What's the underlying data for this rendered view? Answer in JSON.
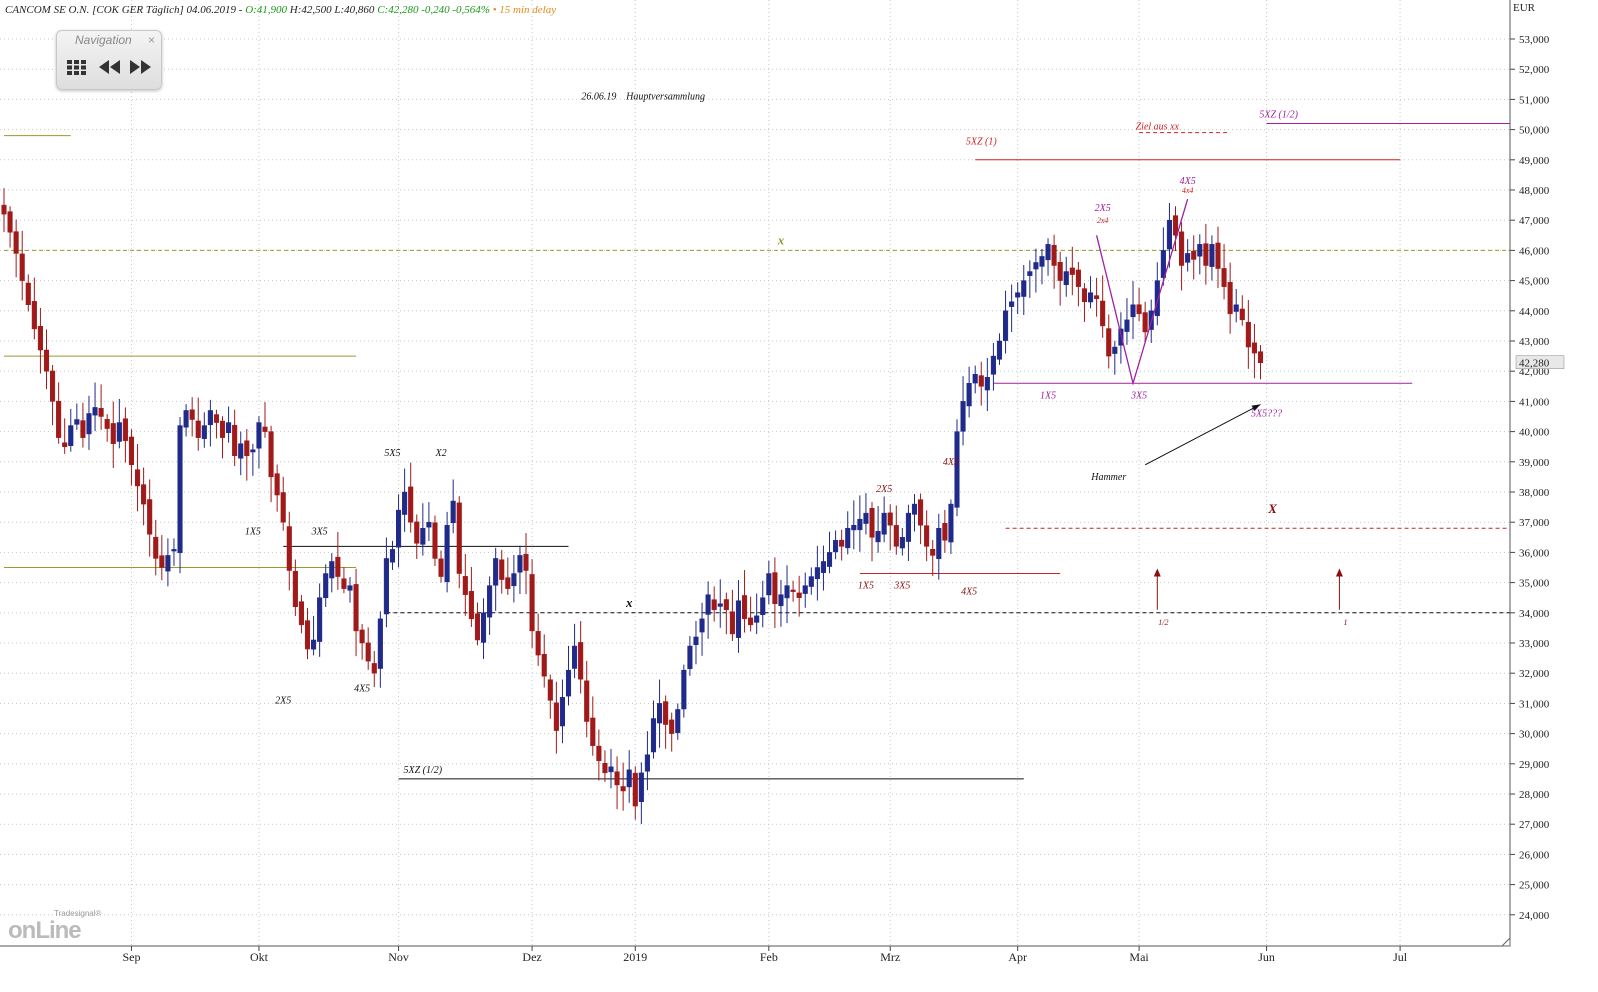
{
  "header": {
    "instrument": "CANCOM SE O.N. [COK GER Täglich] 04.06.2019 -",
    "open": "O:41,900",
    "high": "H:42,500",
    "low": "L:40,860",
    "close": "C:42,280 -0,240 -0,564%",
    "delay": "• 15 min delay"
  },
  "navigation": {
    "title": "Navigation",
    "close": "×",
    "buttons": [
      "grid-icon",
      "rewind-icon",
      "fast-forward-icon"
    ]
  },
  "logo": {
    "small": "Tradesignal®",
    "main": "onLine"
  },
  "colors": {
    "up_candle": "#1f2a8a",
    "down_candle": "#a01a1a",
    "olive_line": "#9a9a2a",
    "red_line": "#cc2222",
    "purple_line": "#a020a0",
    "black_line": "#111111",
    "grid": "#c8c8c8"
  },
  "chart_data": {
    "type": "candlestick",
    "y_unit": "EUR",
    "ylim": [
      23,
      53.5
    ],
    "y_ticks": [
      "24,000",
      "25,000",
      "26,000",
      "27,000",
      "28,000",
      "29,000",
      "30,000",
      "31,000",
      "32,000",
      "33,000",
      "34,000",
      "35,000",
      "36,000",
      "37,000",
      "38,000",
      "39,000",
      "40,000",
      "41,000",
      "42,000",
      "43,000",
      "44,000",
      "45,000",
      "46,000",
      "47,000",
      "48,000",
      "49,000",
      "50,000",
      "51,000",
      "52,000",
      "53,000"
    ],
    "x_ticks": [
      {
        "label": "Sep",
        "bar": 21
      },
      {
        "label": "Okt",
        "bar": 42
      },
      {
        "label": "Nov",
        "bar": 65
      },
      {
        "label": "Dez",
        "bar": 87
      },
      {
        "label": "2019",
        "bar": 104
      },
      {
        "label": "Feb",
        "bar": 126
      },
      {
        "label": "Mrz",
        "bar": 146
      },
      {
        "label": "Apr",
        "bar": 167
      },
      {
        "label": "Mai",
        "bar": 187
      },
      {
        "label": "Jun",
        "bar": 208
      },
      {
        "label": "Jul",
        "bar": 230
      }
    ],
    "last_price_label": "42,280",
    "n_slots": 254,
    "closes": [
      47.2,
      46.6,
      45.9,
      45.0,
      44.2,
      43.4,
      42.7,
      42.0,
      41.0,
      39.8,
      39.5,
      40.2,
      40.4,
      39.8,
      40.6,
      40.8,
      40.5,
      40.1,
      39.6,
      40.3,
      39.7,
      38.9,
      38.2,
      37.6,
      36.6,
      35.8,
      35.5,
      35.9,
      36.1,
      40.2,
      40.7,
      40.4,
      39.8,
      40.2,
      40.7,
      40.3,
      39.8,
      40.3,
      39.2,
      39.6,
      39.2,
      39.4,
      40.3,
      40.0,
      38.5,
      37.9,
      37.0,
      35.4,
      34.2,
      33.6,
      32.8,
      33.1,
      34.5,
      35.3,
      35.7,
      35.2,
      34.8,
      34.9,
      33.4,
      33.0,
      32.4,
      32.0,
      33.8,
      35.8,
      36.1,
      37.4,
      38.0,
      37.0,
      36.3,
      36.8,
      37.0,
      35.8,
      35.2,
      36.9,
      37.7,
      35.3,
      34.6,
      33.8,
      33.1,
      34.0,
      34.9,
      35.8,
      35.1,
      34.8,
      35.3,
      35.9,
      35.4,
      33.4,
      32.6,
      31.9,
      31.1,
      30.1,
      31.2,
      32.1,
      32.9,
      31.8,
      30.4,
      29.6,
      29.1,
      28.7,
      28.9,
      28.3,
      28.1,
      28.8,
      27.6,
      28.7,
      29.3,
      30.5,
      31.0,
      30.3,
      30.0,
      30.8,
      32.1,
      32.9,
      33.2,
      33.8,
      34.6,
      34.1,
      34.3,
      34.1,
      33.3,
      34.4,
      33.8,
      33.6,
      33.9,
      34.5,
      35.3,
      34.3,
      34.6,
      34.9,
      34.7,
      34.5,
      34.9,
      35.2,
      35.5,
      35.7,
      36.0,
      36.4,
      36.2,
      36.8,
      36.9,
      37.1,
      37.3,
      36.5,
      36.7,
      37.3,
      36.9,
      36.2,
      36.5,
      37.3,
      37.6,
      36.9,
      36.2,
      35.9,
      36.8,
      36.4,
      37.6,
      40.0,
      41.0,
      41.6,
      41.9,
      41.5,
      41.8,
      42.5,
      43.0,
      44.0,
      44.3,
      44.6,
      45.0,
      45.3,
      45.6,
      45.8,
      46.2,
      45.5,
      45.0,
      45.3,
      45.2,
      44.8,
      44.3,
      44.6,
      44.4,
      43.5,
      42.5,
      42.8,
      43.4,
      43.7,
      44.2,
      43.9,
      43.3,
      44.0,
      45.0,
      46.0,
      47.0,
      46.5,
      45.5,
      45.9,
      45.7,
      46.2,
      45.5,
      46.2,
      45.4,
      44.8,
      43.9,
      44.2,
      43.7,
      42.8,
      42.6,
      42.28
    ],
    "horizontal_lines": [
      {
        "y": 46.0,
        "style": "dashed",
        "color": "olive",
        "from": 0,
        "to": 253
      },
      {
        "y": 49.8,
        "style": "solid",
        "color": "olive",
        "from": 0,
        "to": 11
      },
      {
        "y": 42.5,
        "style": "solid",
        "color": "olive",
        "from": 0,
        "to": 58
      },
      {
        "y": 35.5,
        "style": "solid",
        "color": "olive",
        "from": 0,
        "to": 58
      },
      {
        "y": 49.0,
        "style": "solid",
        "color": "red",
        "from": 160,
        "to": 230
      },
      {
        "y": 50.2,
        "style": "solid",
        "color": "purple",
        "from": 208,
        "to": 253
      },
      {
        "y": 41.6,
        "style": "solid",
        "color": "purple",
        "from": 163,
        "to": 232
      },
      {
        "y": 34.0,
        "style": "dashed",
        "color": "black",
        "from": 63,
        "to": 253
      },
      {
        "y": 36.2,
        "style": "solid",
        "color": "black",
        "from": 46,
        "to": 93
      },
      {
        "y": 35.3,
        "style": "solid",
        "color": "red",
        "from": 141,
        "to": 174
      },
      {
        "y": 36.8,
        "style": "dashed",
        "color": "red",
        "from": 165,
        "to": 253
      },
      {
        "y": 28.5,
        "style": "solid",
        "color": "black",
        "from": 65,
        "to": 168
      },
      {
        "y": 49.9,
        "style": "dashed",
        "color": "red",
        "from": 187,
        "to": 202
      }
    ],
    "annotations": [
      {
        "text": "26.06.19",
        "bar": 98,
        "y": 51.0,
        "color": "black"
      },
      {
        "text": "Hauptversammlung",
        "bar": 109,
        "y": 51.0,
        "color": "black"
      },
      {
        "text": "5XZ (1)",
        "bar": 161,
        "y": 49.5,
        "color": "red"
      },
      {
        "text": "Ziel aus xx",
        "bar": 190,
        "y": 50.0,
        "color": "red"
      },
      {
        "text": "5XZ (1/2)",
        "bar": 210,
        "y": 50.4,
        "color": "purple"
      },
      {
        "text": "x",
        "bar": 128,
        "y": 46.2,
        "color": "olive"
      },
      {
        "text": "2X5",
        "bar": 181,
        "y": 47.3,
        "color": "purple"
      },
      {
        "text": "2x4",
        "bar": 181,
        "y": 46.9,
        "color": "red"
      },
      {
        "text": "4X5",
        "bar": 195,
        "y": 48.2,
        "color": "purple"
      },
      {
        "text": "4x4",
        "bar": 195,
        "y": 47.9,
        "color": "red"
      },
      {
        "text": "1X5",
        "bar": 172,
        "y": 41.1,
        "color": "purple"
      },
      {
        "text": "3X5",
        "bar": 187,
        "y": 41.1,
        "color": "purple"
      },
      {
        "text": "5X5???",
        "bar": 208,
        "y": 40.5,
        "color": "purple"
      },
      {
        "text": "Hammer",
        "bar": 182,
        "y": 38.4,
        "color": "black"
      },
      {
        "text": "X",
        "bar": 209,
        "y": 37.3,
        "color": "darkred"
      },
      {
        "text": "x",
        "bar": 103,
        "y": 34.2,
        "color": "black"
      },
      {
        "text": "5X5",
        "bar": 64,
        "y": 39.2,
        "color": "black"
      },
      {
        "text": "X2",
        "bar": 72,
        "y": 39.2,
        "color": "black"
      },
      {
        "text": "1X5",
        "bar": 41,
        "y": 36.6,
        "color": "black"
      },
      {
        "text": "3X5",
        "bar": 52,
        "y": 36.6,
        "color": "black"
      },
      {
        "text": "2X5",
        "bar": 46,
        "y": 31.0,
        "color": "black"
      },
      {
        "text": "4X5",
        "bar": 59,
        "y": 31.4,
        "color": "black"
      },
      {
        "text": "5XZ (1/2)",
        "bar": 69,
        "y": 28.7,
        "color": "black"
      },
      {
        "text": "2X5",
        "bar": 145,
        "y": 38.0,
        "color": "darkred"
      },
      {
        "text": "4X5",
        "bar": 156,
        "y": 38.9,
        "color": "darkred"
      },
      {
        "text": "1X5",
        "bar": 142,
        "y": 34.8,
        "color": "darkred"
      },
      {
        "text": "3X5",
        "bar": 148,
        "y": 34.8,
        "color": "darkred"
      },
      {
        "text": "4X5",
        "bar": 159,
        "y": 34.6,
        "color": "darkred"
      },
      {
        "text": "1/2",
        "bar": 191,
        "y": 33.6,
        "color": "darkred"
      },
      {
        "text": "1",
        "bar": 221,
        "y": 33.6,
        "color": "darkred"
      }
    ],
    "zigzag_purple": [
      [
        180,
        46.5
      ],
      [
        186,
        41.6
      ],
      [
        195,
        47.7
      ]
    ],
    "hammer_arrow": {
      "from": [
        188,
        38.9
      ],
      "to": [
        207,
        40.9
      ]
    },
    "up_arrows": [
      {
        "bar": 190,
        "y1": 34.1,
        "y2": 35.4
      },
      {
        "bar": 220,
        "y1": 34.1,
        "y2": 35.4
      }
    ]
  }
}
